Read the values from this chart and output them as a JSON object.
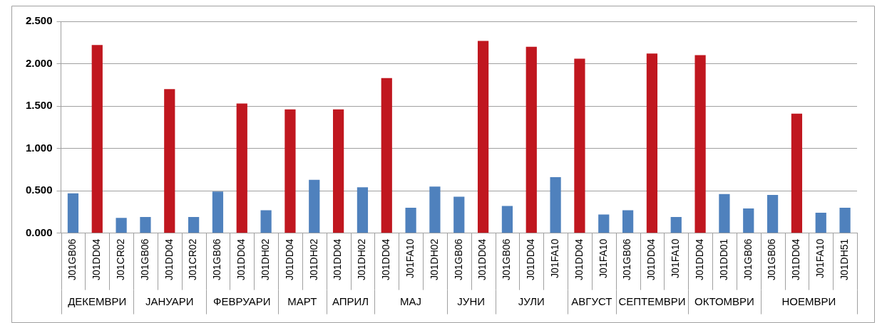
{
  "chart_data": {
    "type": "bar",
    "categories": [
      "J01GB06",
      "J01DD04",
      "J01CR02",
      "J01GB06",
      "J01DD04",
      "J01CR02",
      "J01GB06",
      "J01DD04",
      "J01DH02",
      "J01DD04",
      "J01DH02",
      "J01DD04",
      "J01DH02",
      "J01DD04",
      "J01FA10",
      "J01DH02",
      "J01GB06",
      "J01DD04",
      "J01GB06",
      "J01DD04",
      "J01FA10",
      "J01DD04",
      "J01FA10",
      "J01GB06",
      "J01DD04",
      "J01FA10",
      "J01DD04",
      "J01DD01",
      "J01GB06",
      "J01GB06",
      "J01DD04",
      "J01FA10",
      "J01DH51"
    ],
    "values": [
      0.47,
      2.22,
      0.18,
      0.19,
      1.7,
      0.19,
      0.49,
      1.53,
      0.27,
      1.46,
      0.63,
      1.46,
      0.54,
      1.83,
      0.3,
      0.55,
      0.43,
      2.27,
      0.32,
      2.2,
      0.66,
      2.06,
      0.22,
      0.27,
      2.12,
      0.19,
      2.1,
      0.46,
      0.29,
      0.45,
      1.41,
      0.24,
      0.3
    ],
    "colors": [
      "#4f81bd",
      "#c0171f",
      "#4f81bd",
      "#4f81bd",
      "#c0171f",
      "#4f81bd",
      "#4f81bd",
      "#c0171f",
      "#4f81bd",
      "#c0171f",
      "#4f81bd",
      "#c0171f",
      "#4f81bd",
      "#c0171f",
      "#4f81bd",
      "#4f81bd",
      "#4f81bd",
      "#c0171f",
      "#4f81bd",
      "#c0171f",
      "#4f81bd",
      "#c0171f",
      "#4f81bd",
      "#4f81bd",
      "#c0171f",
      "#4f81bd",
      "#c0171f",
      "#4f81bd",
      "#4f81bd",
      "#4f81bd",
      "#c0171f",
      "#4f81bd",
      "#4f81bd"
    ],
    "ylim": [
      0,
      2.5
    ],
    "yticks": [
      {
        "value": 0,
        "label": "0.000"
      },
      {
        "value": 0.5,
        "label": "0.500"
      },
      {
        "value": 1,
        "label": "1.000"
      },
      {
        "value": 1.5,
        "label": "1.500"
      },
      {
        "value": 2,
        "label": "2.000"
      },
      {
        "value": 2.5,
        "label": "2.500"
      }
    ],
    "grid": "y",
    "legend": false,
    "annotations": [
      "ДЕКЕМВРИ",
      "ЈАНУАРИ",
      "ФЕВРУАРИ",
      "МАРТ",
      "АПРИЛ",
      "МАЈ",
      "ЈУНИ",
      "ЈУЛИ",
      "АВГУСТ",
      "СЕПТЕМВРИ",
      "ОКТОМВРИ",
      "НОЕМВРИ"
    ]
  }
}
